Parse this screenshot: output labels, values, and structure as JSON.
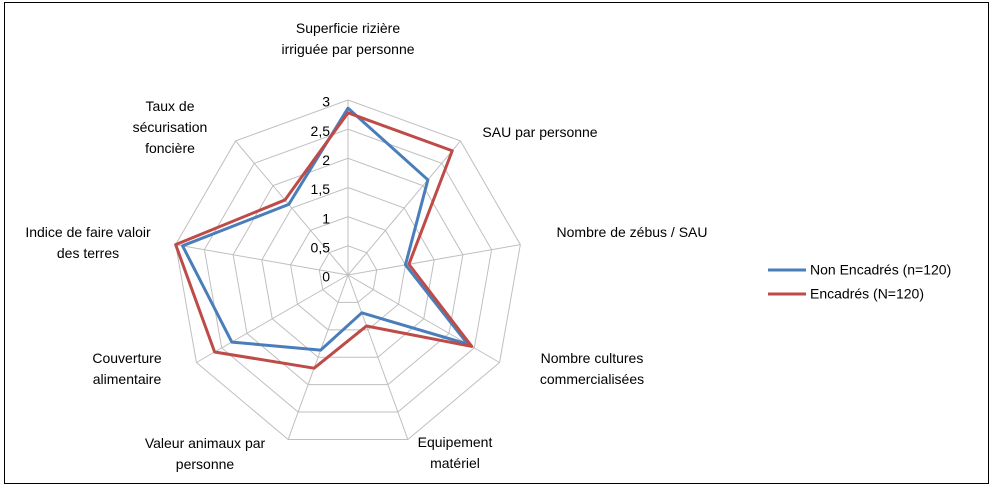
{
  "chart_data": {
    "type": "radar",
    "categories": [
      "Superficie rizière irriguée par personne",
      "SAU par personne",
      "Nombre de zébus / SAU",
      "Nombre cultures commercialisées",
      "Equipement matériel",
      "Valeur animaux par personne",
      "Couverture alimentaire",
      "Indice de faire valoir des terres",
      "Taux de sécurisation foncière"
    ],
    "series": [
      {
        "name": "Non Encadrés (n=120)",
        "color": "#4a7ebb",
        "values": [
          2.86,
          2.13,
          1.0,
          2.37,
          0.69,
          1.37,
          2.3,
          2.88,
          1.58
        ]
      },
      {
        "name": "Encadrés (N=120)",
        "color": "#be4b48",
        "values": [
          2.78,
          2.78,
          1.06,
          2.45,
          0.93,
          1.7,
          2.64,
          3.0,
          1.68
        ]
      }
    ],
    "ylim": [
      0,
      3
    ],
    "yticks": [
      0,
      {
        "value": 0.5,
        "label": "0,5"
      },
      1,
      {
        "value": 1.5,
        "label": "1,5"
      },
      2,
      {
        "value": 2.5,
        "label": "2,5"
      },
      3
    ],
    "grid": true,
    "legend": "right"
  }
}
